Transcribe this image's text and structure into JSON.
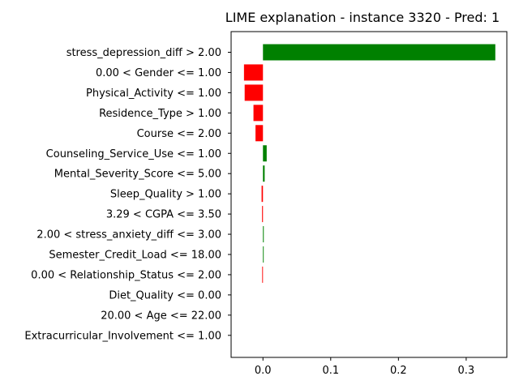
{
  "chart_data": {
    "type": "bar",
    "orientation": "horizontal",
    "title": "LIME explanation - instance 3320 - Pred: 1",
    "xlabel": "",
    "ylabel": "",
    "xlim": [
      -0.047,
      0.36
    ],
    "xticks": [
      0.0,
      0.1,
      0.2,
      0.3
    ],
    "xtick_labels": [
      "0.0",
      "0.1",
      "0.2",
      "0.3"
    ],
    "grid": false,
    "positive_color": "#008000",
    "negative_color": "#ff0000",
    "categories": [
      "stress_depression_diff > 2.00",
      "0.00 < Gender <= 1.00",
      "Physical_Activity <= 1.00",
      "Residence_Type > 1.00",
      "Course <= 2.00",
      "Counseling_Service_Use <= 1.00",
      "Mental_Severity_Score <= 5.00",
      "Sleep_Quality > 1.00",
      "3.29 < CGPA <= 3.50",
      "2.00 < stress_anxiety_diff <= 3.00",
      "Semester_Credit_Load <= 18.00",
      "0.00 < Relationship_Status <= 2.00",
      "Diet_Quality <= 0.00",
      "20.00 < Age <= 22.00",
      "Extracurricular_Involvement <= 1.00"
    ],
    "values": [
      0.343,
      -0.028,
      -0.027,
      -0.014,
      -0.011,
      0.0055,
      0.0025,
      -0.002,
      -0.0013,
      0.0012,
      0.0011,
      -0.0011,
      0.0,
      0.0,
      0.0
    ]
  }
}
